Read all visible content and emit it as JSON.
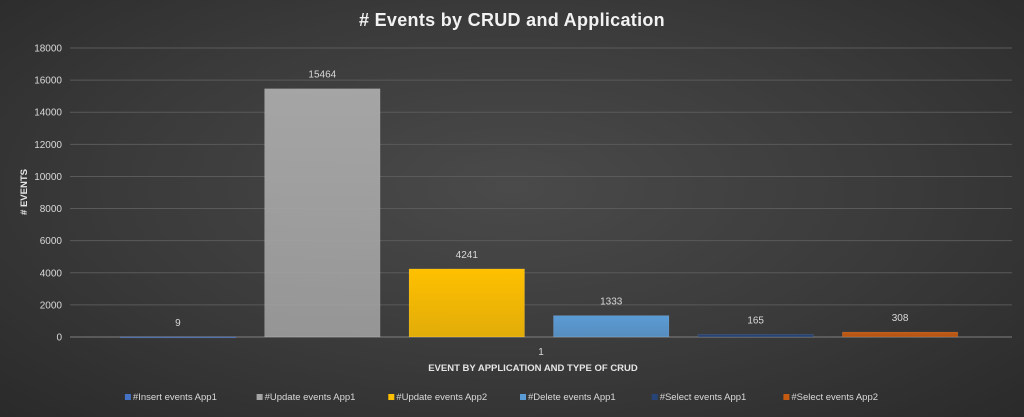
{
  "chart_data": {
    "type": "bar",
    "title": "# Events by CRUD and Application",
    "xlabel": "EVENT BY APPLICATION AND TYPE OF CRUD",
    "ylabel": "# EVENTS",
    "categories": [
      "1"
    ],
    "ylim": [
      0,
      18000
    ],
    "yticks": [
      0,
      2000,
      4000,
      6000,
      8000,
      10000,
      12000,
      14000,
      16000,
      18000
    ],
    "grid": true,
    "legend_position": "bottom",
    "series": [
      {
        "name": "#Insert events App1",
        "values": [
          9
        ],
        "color": "#4472c4"
      },
      {
        "name": "#Update events App1",
        "values": [
          15464
        ],
        "color": "#a5a5a5"
      },
      {
        "name": "#Update events App2",
        "values": [
          4241
        ],
        "color": "#ffc000"
      },
      {
        "name": "#Delete events App1",
        "values": [
          1333
        ],
        "color": "#5b9bd5"
      },
      {
        "name": "#Select events App1",
        "values": [
          165
        ],
        "color": "#264478"
      },
      {
        "name": "#Select events App2",
        "values": [
          308
        ],
        "color": "#c55a11"
      }
    ]
  }
}
